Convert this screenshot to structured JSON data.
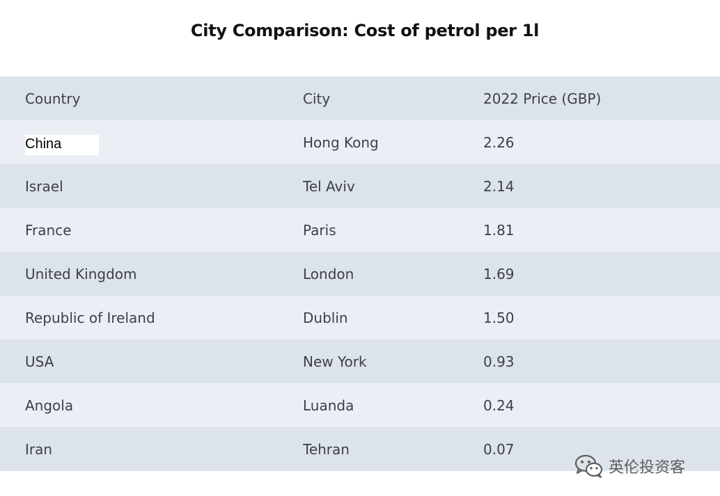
{
  "title": "City Comparison: Cost of petrol per 1l",
  "table": {
    "headers": [
      "Country",
      "City",
      "2022 Price (GBP)"
    ],
    "rows": [
      {
        "country": "China",
        "city": "Hong Kong",
        "price": "2.26"
      },
      {
        "country": "Israel",
        "city": "Tel Aviv",
        "price": "2.14"
      },
      {
        "country": "France",
        "city": "Paris",
        "price": "1.81"
      },
      {
        "country": "United Kingdom",
        "city": "London",
        "price": "1.69"
      },
      {
        "country": "Republic of Ireland",
        "city": "Dublin",
        "price": "1.50"
      },
      {
        "country": "USA",
        "city": "New York",
        "price": "0.93"
      },
      {
        "country": "Angola",
        "city": "Luanda",
        "price": "0.24"
      },
      {
        "country": "Iran",
        "city": "Tehran",
        "price": "0.07"
      }
    ]
  },
  "watermark": {
    "text": "英伦投资客",
    "icon": "wechat-icon"
  },
  "colors": {
    "header_row": "#dde3ea",
    "row_light": "#ebeff5",
    "row_dark": "#dde3ea",
    "text": "#3c4046"
  }
}
